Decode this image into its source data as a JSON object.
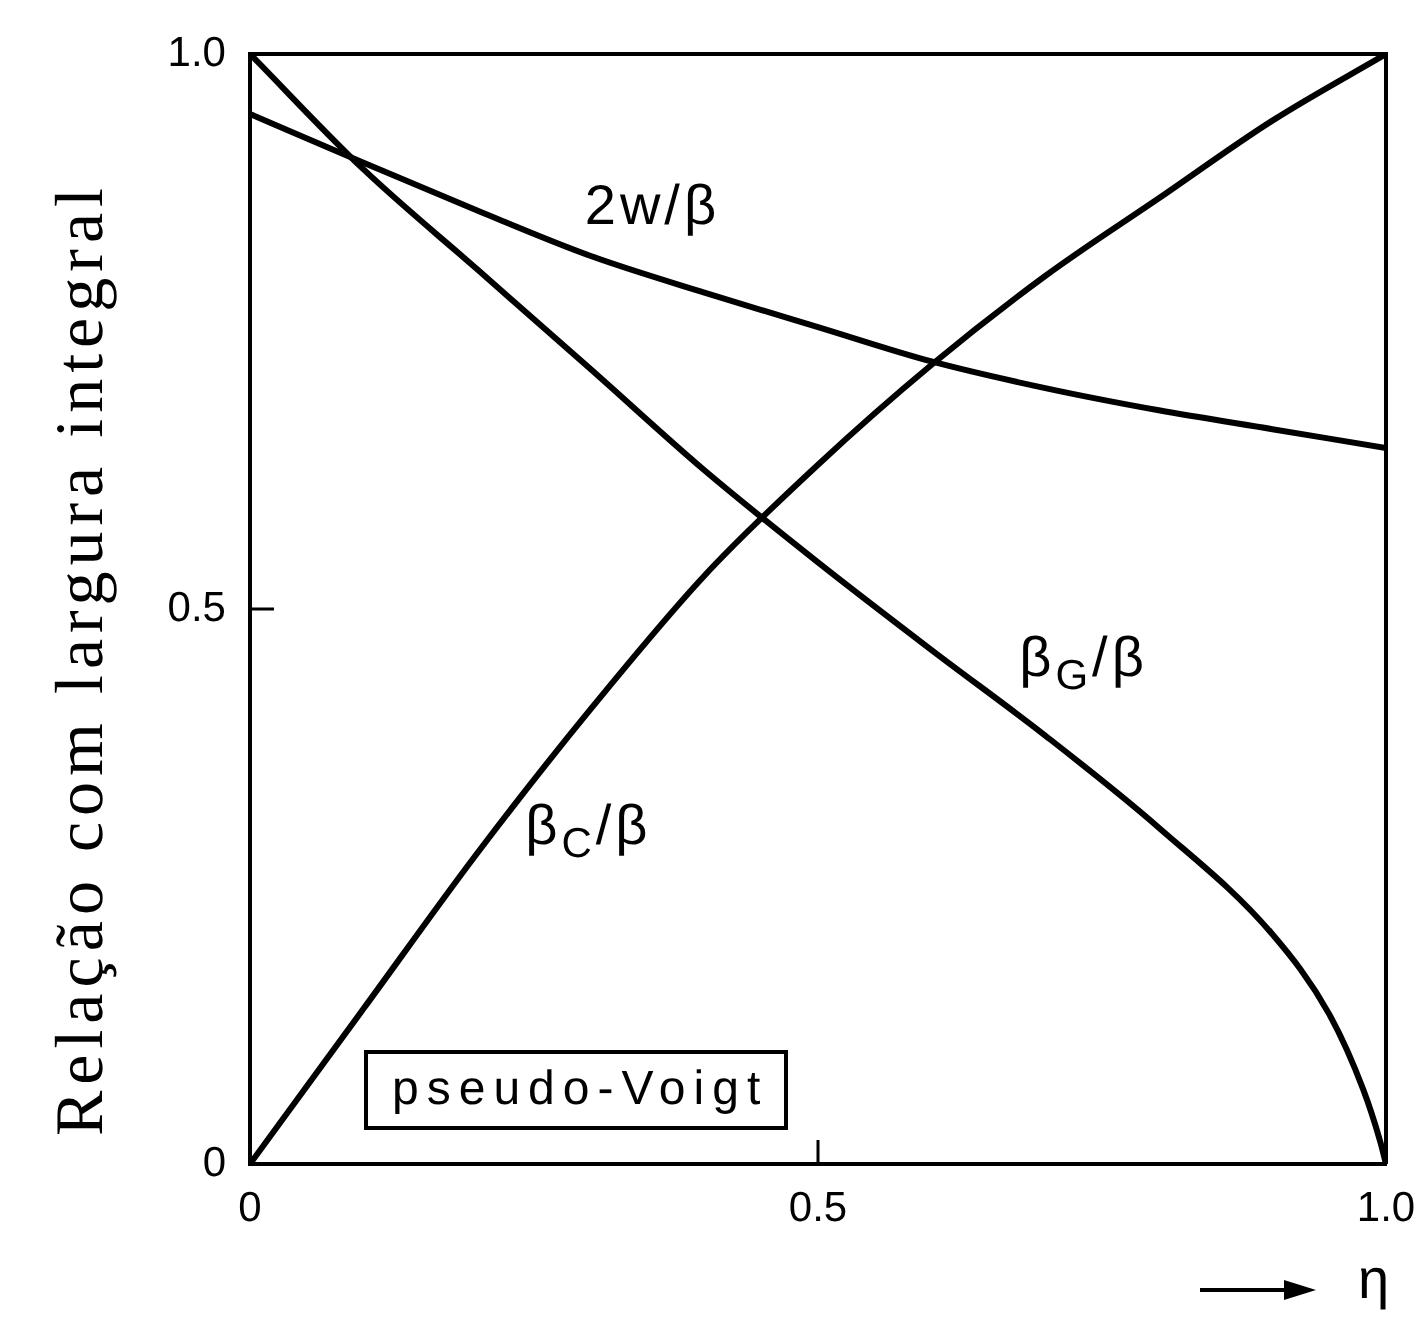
{
  "chart_data": {
    "type": "line",
    "xlabel": "η",
    "ylabel": "Relação com largura integral",
    "annotations": [
      "pseudo-Voigt"
    ],
    "x": [
      0,
      0.1,
      0.2,
      0.3,
      0.4,
      0.5,
      0.6,
      0.7,
      0.8,
      0.9,
      1
    ],
    "series": [
      {
        "name": "2w/β",
        "color": "#000000",
        "values": [
          0.946,
          0.902,
          0.859,
          0.818,
          0.785,
          0.754,
          0.723,
          0.699,
          0.679,
          0.662,
          0.645
        ]
      },
      {
        "name": "β$_{G}$/β",
        "color": "#000000",
        "x": [
          0,
          0.1,
          0.2,
          0.3,
          0.4,
          0.5,
          0.6,
          0.7,
          0.8,
          0.9,
          0.95,
          0.98,
          0.995,
          1
        ],
        "values": [
          1,
          0.896,
          0.806,
          0.716,
          0.625,
          0.542,
          0.463,
          0.386,
          0.303,
          0.207,
          0.135,
          0.067,
          0.02,
          0
        ]
      },
      {
        "name": "β$_{C}$/β",
        "color": "#000000",
        "values": [
          0,
          0.14,
          0.28,
          0.41,
          0.53,
          0.63,
          0.72,
          0.8,
          0.87,
          0.94,
          1
        ]
      }
    ],
    "xlim": [
      0,
      1
    ],
    "xticks": [
      0,
      0.5,
      {
        "value": 1,
        "label": "1.0"
      }
    ],
    "ylim": [
      0,
      1
    ],
    "yticks": [
      0,
      0.5,
      {
        "value": 1,
        "label": "1.0"
      }
    ]
  }
}
